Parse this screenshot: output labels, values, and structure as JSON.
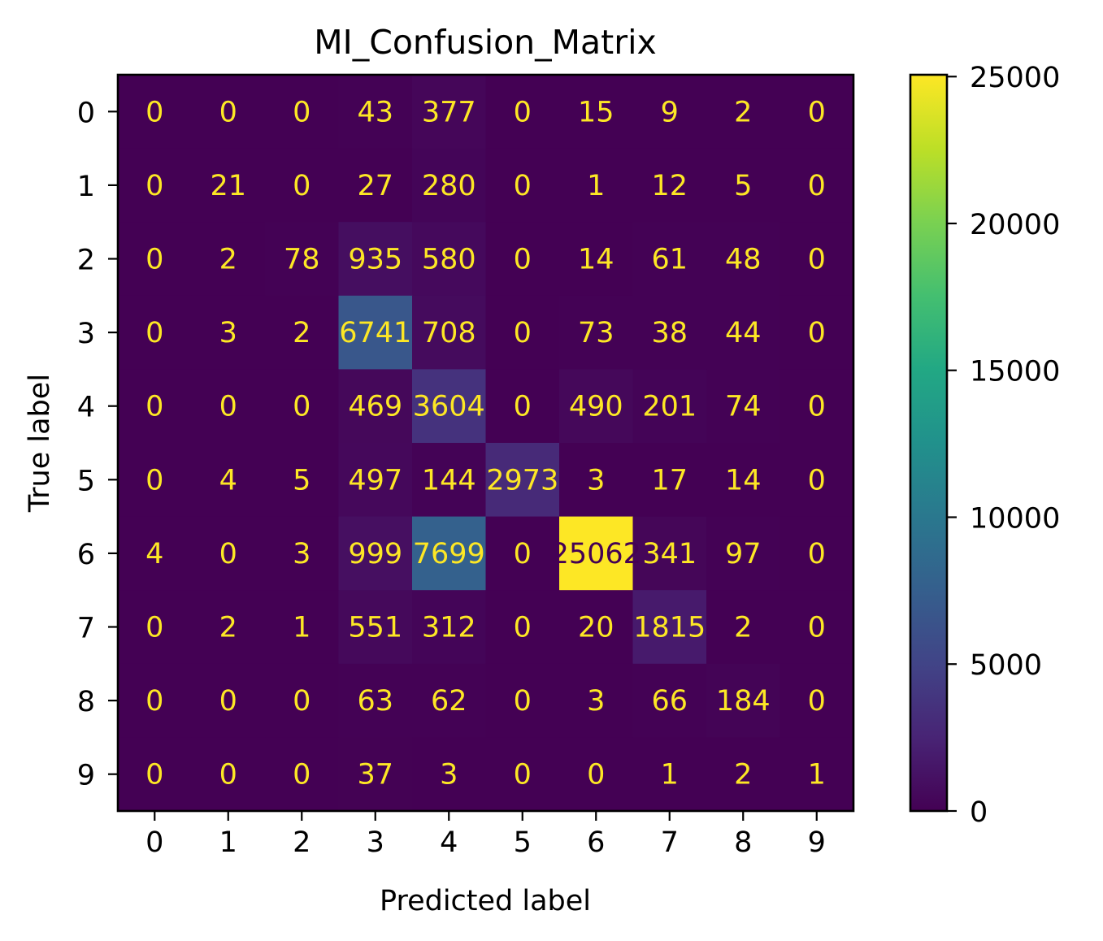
{
  "chart_data": {
    "type": "heatmap",
    "title": "MI_Confusion_Matrix",
    "xlabel": "Predicted label",
    "ylabel": "True label",
    "x_categories": [
      "0",
      "1",
      "2",
      "3",
      "4",
      "5",
      "6",
      "7",
      "8",
      "9"
    ],
    "y_categories": [
      "0",
      "1",
      "2",
      "3",
      "4",
      "5",
      "6",
      "7",
      "8",
      "9"
    ],
    "values": [
      [
        0,
        0,
        0,
        43,
        377,
        0,
        15,
        9,
        2,
        0
      ],
      [
        0,
        21,
        0,
        27,
        280,
        0,
        1,
        12,
        5,
        0
      ],
      [
        0,
        2,
        78,
        935,
        580,
        0,
        14,
        61,
        48,
        0
      ],
      [
        0,
        3,
        2,
        6741,
        708,
        0,
        73,
        38,
        44,
        0
      ],
      [
        0,
        0,
        0,
        469,
        3604,
        0,
        490,
        201,
        74,
        0
      ],
      [
        0,
        4,
        5,
        497,
        144,
        2973,
        3,
        17,
        14,
        0
      ],
      [
        4,
        0,
        3,
        999,
        7699,
        0,
        25062,
        341,
        97,
        0
      ],
      [
        0,
        2,
        1,
        551,
        312,
        0,
        20,
        1815,
        2,
        0
      ],
      [
        0,
        0,
        0,
        63,
        62,
        0,
        3,
        66,
        184,
        0
      ],
      [
        0,
        0,
        0,
        37,
        3,
        0,
        0,
        1,
        2,
        1
      ]
    ],
    "colormap": "viridis",
    "colorbar": {
      "vmin": 0,
      "vmax": 25062,
      "ticks": [
        0,
        5000,
        10000,
        15000,
        20000,
        25000
      ]
    },
    "text_color_low": "#fde725",
    "text_color_high": "#440154"
  }
}
